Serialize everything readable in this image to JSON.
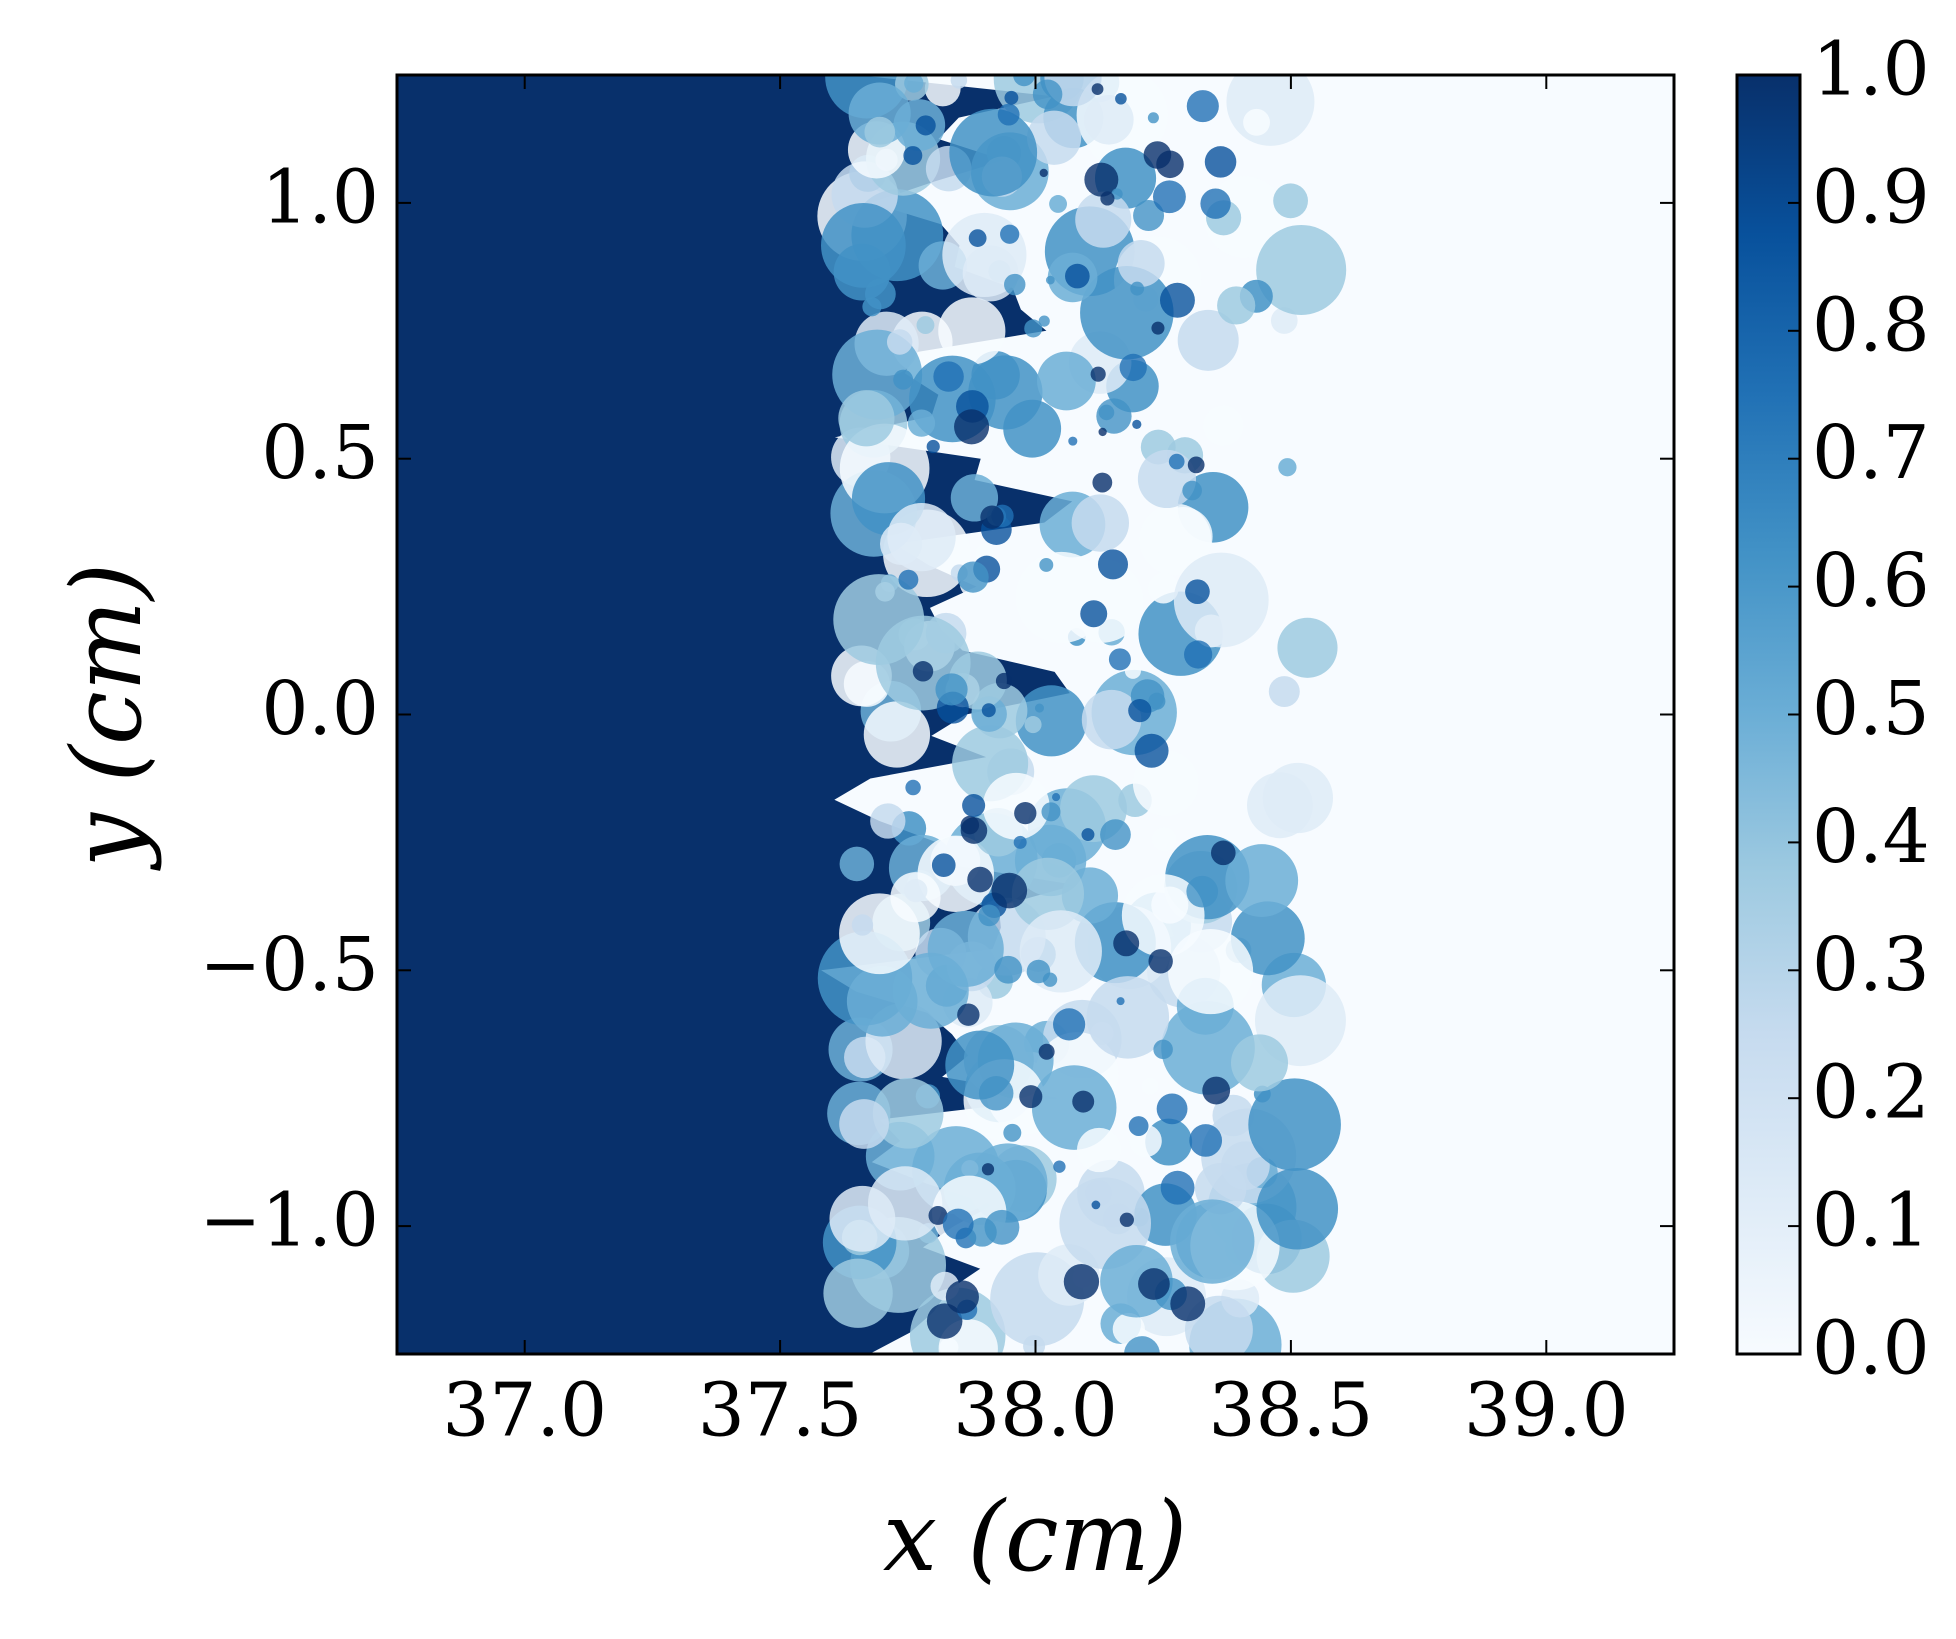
{
  "chart_data": {
    "type": "image",
    "xlabel": "x (cm)",
    "ylabel": "y (cm)",
    "xlim": [
      36.75,
      39.25
    ],
    "xticks": [
      {
        "value": 37,
        "label": "37.0"
      },
      {
        "value": 37.5,
        "label": "37.5"
      },
      {
        "value": 38,
        "label": "38.0"
      },
      {
        "value": 38.5,
        "label": "38.5"
      },
      {
        "value": 39,
        "label": "39.0"
      }
    ],
    "ylim": [
      -1.25,
      1.25
    ],
    "yticks": [
      {
        "value": -1,
        "label": "−1.0"
      },
      {
        "value": -0.5,
        "label": "−0.5"
      },
      {
        "value": 0,
        "label": "0.0"
      },
      {
        "value": 0.5,
        "label": "0.5"
      },
      {
        "value": 1,
        "label": "1.0"
      }
    ],
    "colorbar": {
      "lim": [
        0,
        1
      ],
      "ticks": [
        {
          "value": 0,
          "label": "0.0"
        },
        {
          "value": 0.1,
          "label": "0.1"
        },
        {
          "value": 0.2,
          "label": "0.2"
        },
        {
          "value": 0.3,
          "label": "0.3"
        },
        {
          "value": 0.4,
          "label": "0.4"
        },
        {
          "value": 0.5,
          "label": "0.5"
        },
        {
          "value": 0.6,
          "label": "0.6"
        },
        {
          "value": 0.7,
          "label": "0.7"
        },
        {
          "value": 0.8,
          "label": "0.8"
        },
        {
          "value": 0.9,
          "label": "0.9"
        },
        {
          "value": 1,
          "label": "1.0"
        }
      ],
      "colormap": [
        "#f7fbff",
        "#deebf7",
        "#c6dbef",
        "#9ecae1",
        "#6baed6",
        "#4292c6",
        "#2171b5",
        "#08519c",
        "#08306b"
      ]
    }
  }
}
